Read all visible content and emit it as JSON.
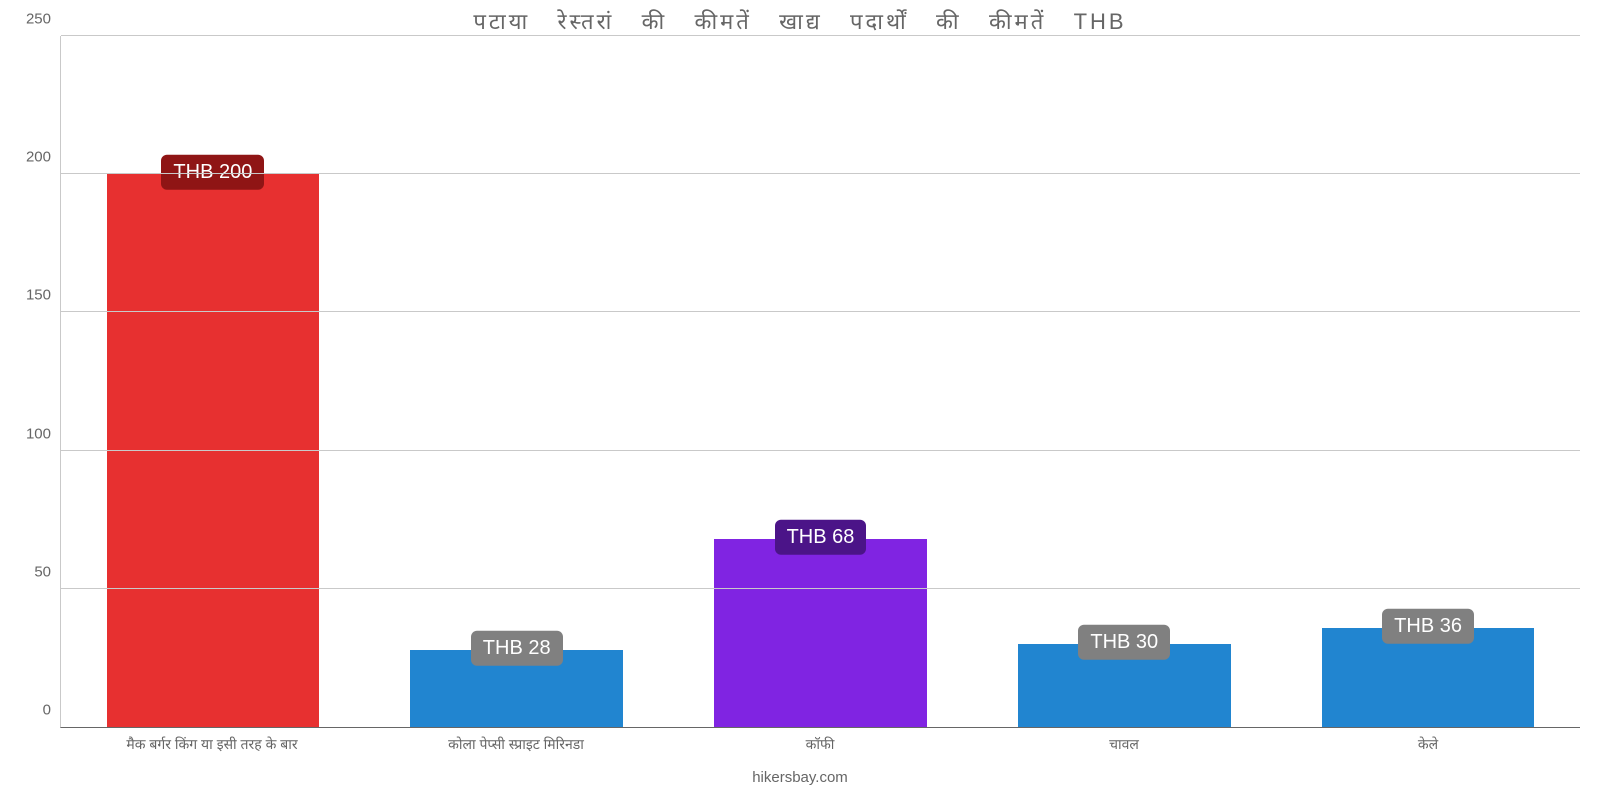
{
  "chart": {
    "type": "bar",
    "title": "पटाया   रेस्तरां   की   कीमतें   खाद्य   पदार्थों   की   कीमतें   THB",
    "title_fontsize": 22,
    "title_color": "#666666",
    "background_color": "#ffffff",
    "grid_color": "#c9c9c9",
    "axis_font_color": "#666666",
    "axis_fontsize": 15,
    "xlabel_fontsize": 14,
    "ylim": [
      0,
      250
    ],
    "ytick_step": 50,
    "yticks": [
      "0",
      "50",
      "100",
      "150",
      "200",
      "250"
    ],
    "bar_width": 0.7,
    "value_prefix": "THB ",
    "badge_fontsize": 20,
    "categories": [
      "मैक बर्गर किंग या इसी तरह के बार",
      "कोला पेप्सी स्प्राइट मिरिनडा",
      "कॉफी",
      "चावल",
      "केले"
    ],
    "series": [
      {
        "value": 200,
        "display": "THB 200",
        "bar_color": "#e73030",
        "badge_bg": "#8f1515"
      },
      {
        "value": 28,
        "display": "THB 28",
        "bar_color": "#2185d0",
        "badge_bg": "#808080"
      },
      {
        "value": 68,
        "display": "THB 68",
        "bar_color": "#8024e2",
        "badge_bg": "#4b1488"
      },
      {
        "value": 30,
        "display": "THB 30",
        "bar_color": "#2185d0",
        "badge_bg": "#808080"
      },
      {
        "value": 36,
        "display": "THB 36",
        "bar_color": "#2185d0",
        "badge_bg": "#808080"
      }
    ],
    "attribution": "hikersbay.com",
    "attribution_fontsize": 15
  }
}
